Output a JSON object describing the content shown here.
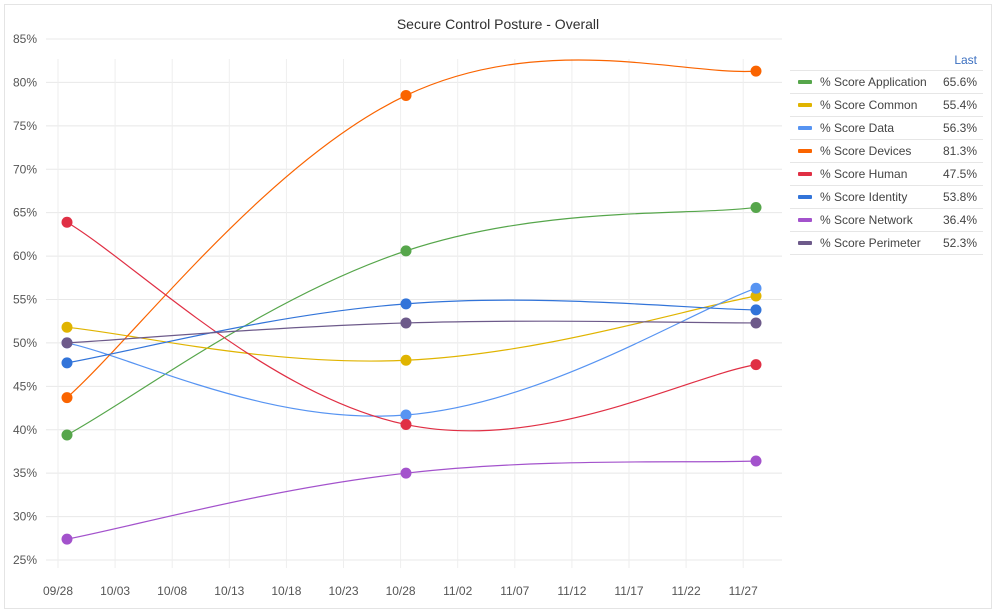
{
  "panel": {
    "title": "Secure Control Posture - Overall"
  },
  "legend": {
    "header": "Last"
  },
  "chart_data": {
    "type": "line",
    "title": "Secure Control Posture - Overall",
    "x_tick_labels": [
      "09/28",
      "10/03",
      "10/08",
      "10/13",
      "10/18",
      "10/23",
      "10/28",
      "11/02",
      "11/07",
      "11/12",
      "11/17",
      "11/22",
      "11/27"
    ],
    "x_points": [
      "09/30",
      "10/30",
      "11/30"
    ],
    "ylim": [
      25,
      85
    ],
    "y_ticks": [
      25,
      30,
      35,
      40,
      45,
      50,
      55,
      60,
      65,
      70,
      75,
      80,
      85
    ],
    "y_unit": "%",
    "grid": true,
    "legend_position": "right",
    "series": [
      {
        "name": "% Score Application",
        "values": [
          39.4,
          60.6,
          65.6
        ],
        "last": "65.6%",
        "color": "#56a64b"
      },
      {
        "name": "% Score Common",
        "values": [
          51.8,
          48.0,
          55.4
        ],
        "last": "55.4%",
        "color": "#e0b400"
      },
      {
        "name": "% Score Data",
        "values": [
          50.0,
          41.7,
          56.3
        ],
        "last": "56.3%",
        "color": "#5794f2"
      },
      {
        "name": "% Score Devices",
        "values": [
          43.7,
          78.5,
          81.3
        ],
        "last": "81.3%",
        "color": "#fa6400"
      },
      {
        "name": "% Score Human",
        "values": [
          63.9,
          40.6,
          47.5
        ],
        "last": "47.5%",
        "color": "#e02f44"
      },
      {
        "name": "% Score Identity",
        "values": [
          47.7,
          54.5,
          53.8
        ],
        "last": "53.8%",
        "color": "#3274d9"
      },
      {
        "name": "% Score Network",
        "values": [
          27.4,
          35.0,
          36.4
        ],
        "last": "36.4%",
        "color": "#a352cc"
      },
      {
        "name": "% Score Perimeter",
        "values": [
          50.0,
          52.3,
          52.3
        ],
        "last": "52.3%",
        "color": "#6d5a8a"
      }
    ]
  }
}
